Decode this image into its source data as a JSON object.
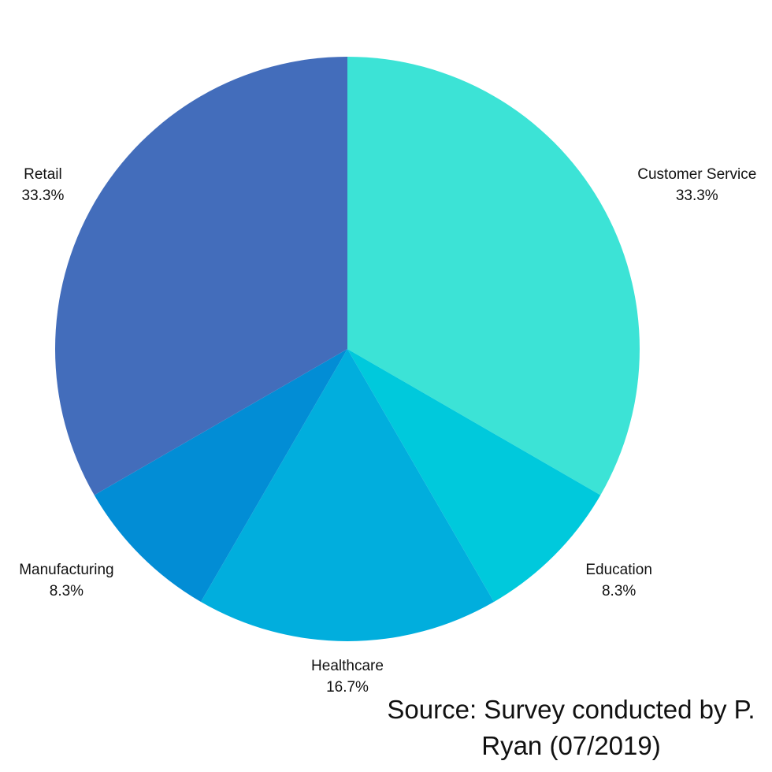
{
  "chart_data": {
    "type": "pie",
    "categories": [
      "Customer Service",
      "Education",
      "Healthcare",
      "Manufacturing",
      "Retail"
    ],
    "values": [
      33.3,
      8.3,
      16.7,
      8.3,
      33.3
    ],
    "value_labels": [
      "33.3%",
      "8.3%",
      "16.7%",
      "8.3%",
      "33.3%"
    ],
    "colors": [
      "#3ce3d6",
      "#00c9dc",
      "#01aedd",
      "#028dd5",
      "#436dbb"
    ],
    "source": "Source: Survey conducted by P. Ryan (07/2019)"
  }
}
